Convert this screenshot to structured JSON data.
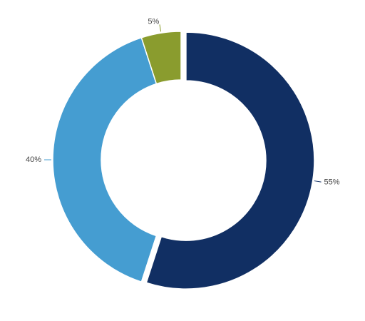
{
  "chart_data": {
    "type": "donut",
    "series": [
      {
        "values": [
          55,
          40,
          5
        ],
        "value_labels": [
          "55%",
          "40%",
          "5%"
        ],
        "colors": [
          "#112f63",
          "#459dd1",
          "#8a9c2e"
        ]
      }
    ]
  }
}
